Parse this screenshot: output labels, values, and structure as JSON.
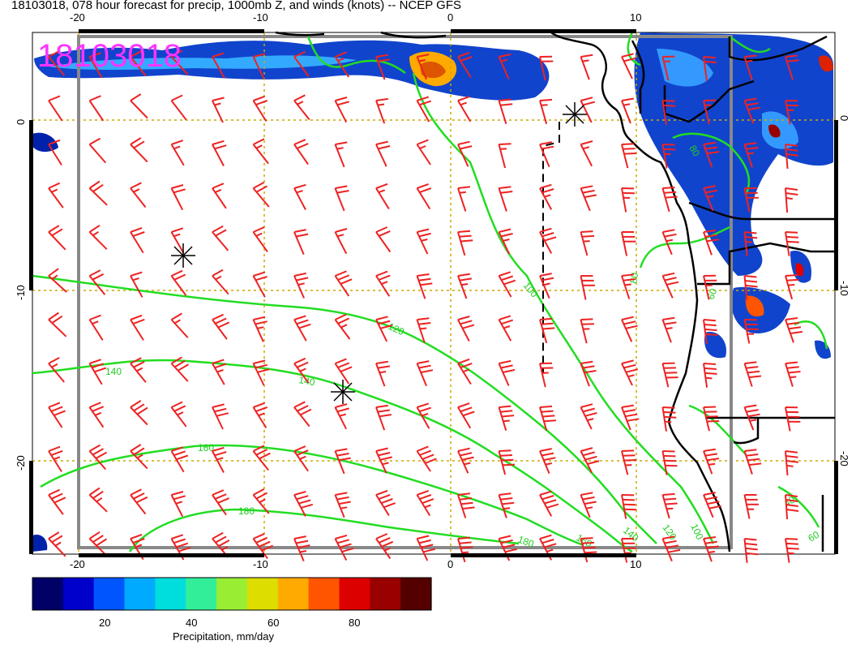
{
  "title": "18103018, 078 hour forecast for precip, 1000mb Z, and winds (knots) -- NCEP GFS",
  "stamp": "18103018",
  "axes": {
    "top_x": [
      "-20",
      "-10",
      "0",
      "10"
    ],
    "bottom_x": [
      "-20",
      "-10",
      "0",
      "10"
    ],
    "left_y": [
      "0",
      "-10",
      "-20"
    ],
    "right_y": [
      "0",
      "-10",
      "-20"
    ]
  },
  "contour_labels": [
    "100",
    "120",
    "140",
    "140",
    "160",
    "180",
    "180",
    "160",
    "140",
    "120",
    "100",
    "80",
    "60",
    "40",
    "60",
    "80"
  ],
  "colorbar": {
    "label": "Precipitation, mm/day",
    "ticks": [
      "20",
      "40",
      "60",
      "80"
    ],
    "colors": [
      "#000066",
      "#0000cc",
      "#0055ff",
      "#00aaff",
      "#00dddd",
      "#33ee99",
      "#99ee33",
      "#dddd00",
      "#ffaa00",
      "#ff5500",
      "#dd0000",
      "#990000",
      "#550000"
    ]
  },
  "colors": {
    "barbs": "#ee2222",
    "contours": "#22dd22",
    "gridlines": "#ccaa00",
    "coast": "#000000"
  },
  "markers": [
    "storm-center-1",
    "storm-center-2",
    "storm-center-3"
  ]
}
